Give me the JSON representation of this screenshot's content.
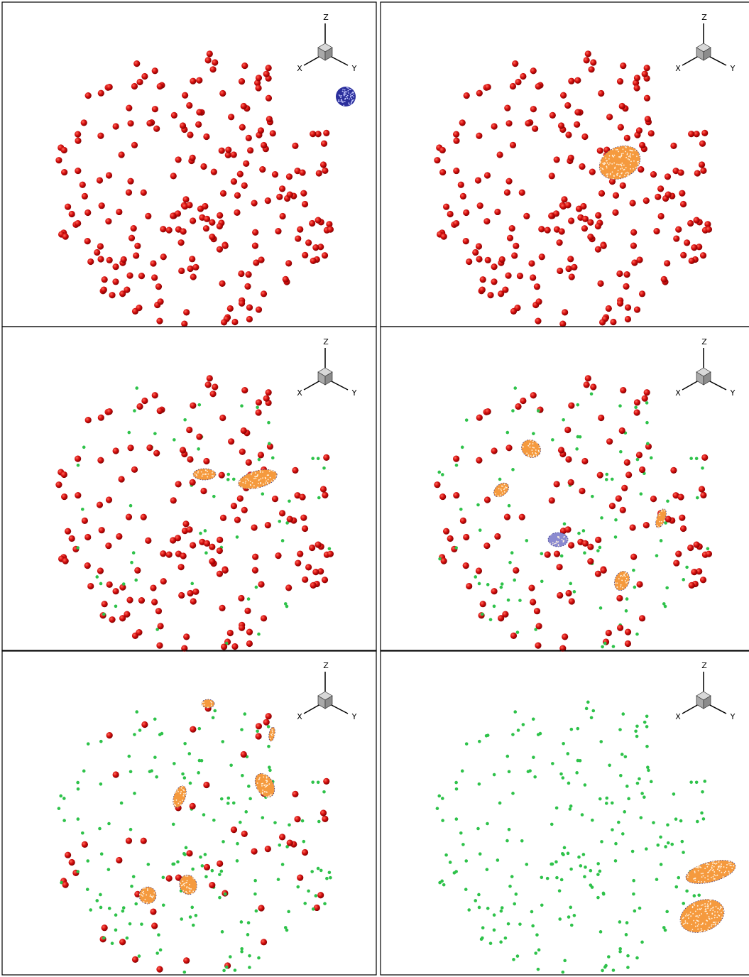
{
  "panels": [
    {
      "axis_labels": {
        "z": "Z",
        "x": "X",
        "y": "Y"
      }
    },
    {
      "axis_labels": {
        "z": "Z",
        "x": "X",
        "y": "Y"
      }
    },
    {
      "axis_labels": {
        "z": "Z",
        "x": "X",
        "y": "Y"
      }
    },
    {
      "axis_labels": {
        "z": "Z",
        "x": "X",
        "y": "Y"
      }
    },
    {
      "axis_labels": {
        "z": "Z",
        "x": "X",
        "y": "Y"
      }
    },
    {
      "axis_labels": {
        "z": "Z",
        "x": "X",
        "y": "Y"
      }
    }
  ]
}
